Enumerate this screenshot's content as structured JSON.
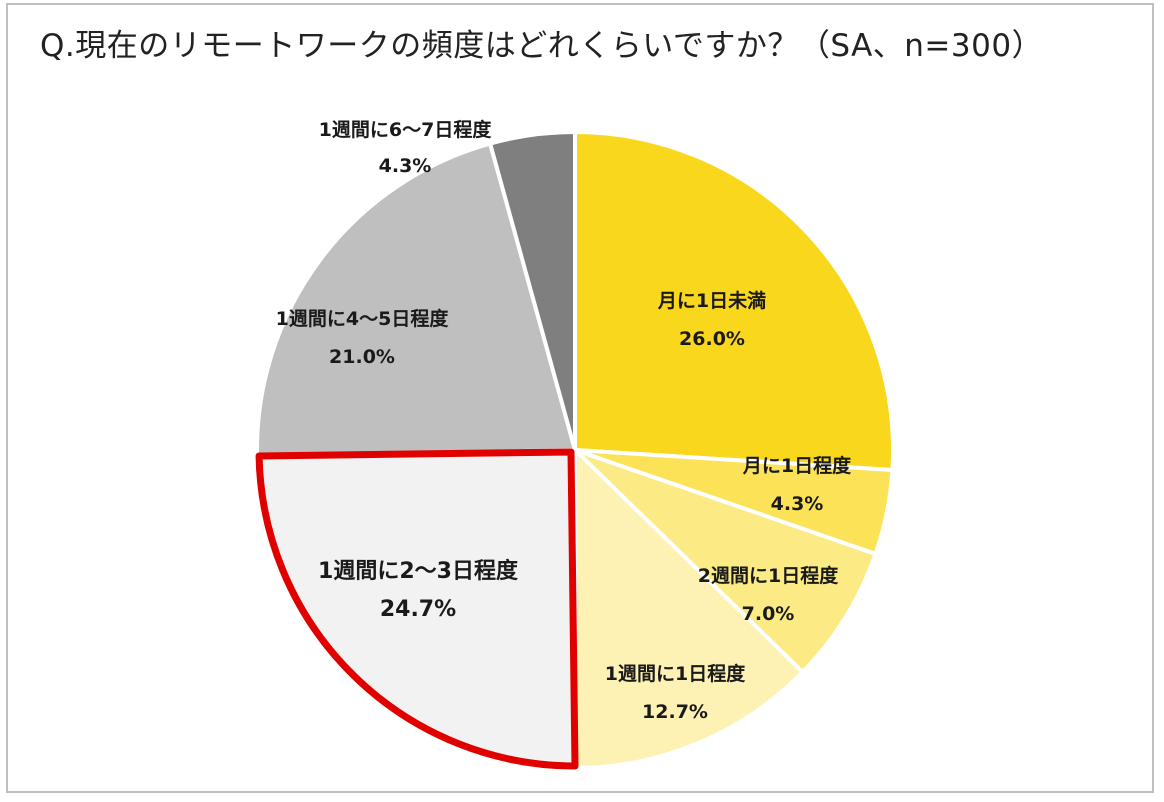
{
  "chart_data": {
    "type": "pie",
    "title": "Q.現在のリモートワークの頻度はどれくらいですか？（SA、n=300）",
    "slices": [
      {
        "label": "月に1日未満",
        "value": 26.0,
        "value_text": "26.0%",
        "color": "#f9d71c"
      },
      {
        "label": "月に1日程度",
        "value": 4.3,
        "value_text": "4.3%",
        "color": "#fbe257"
      },
      {
        "label": "2週間に1日程度",
        "value": 7.0,
        "value_text": "7.0%",
        "color": "#fcea84"
      },
      {
        "label": "1週間に1日程度",
        "value": 12.7,
        "value_text": "12.7%",
        "color": "#fdf2b4"
      },
      {
        "label": "1週間に2～3日程度",
        "value": 24.7,
        "value_text": "24.7%",
        "color": "#f2f2f2",
        "highlighted": true,
        "highlight_color": "#e00000"
      },
      {
        "label": "1週間に4～5日程度",
        "value": 21.0,
        "value_text": "21.0%",
        "color": "#bfbfbf"
      },
      {
        "label": "1週間に6～7日程度",
        "value": 4.3,
        "value_text": "4.3%",
        "color": "#7f7f7f"
      }
    ],
    "start": "12 o'clock",
    "direction": "clockwise"
  }
}
